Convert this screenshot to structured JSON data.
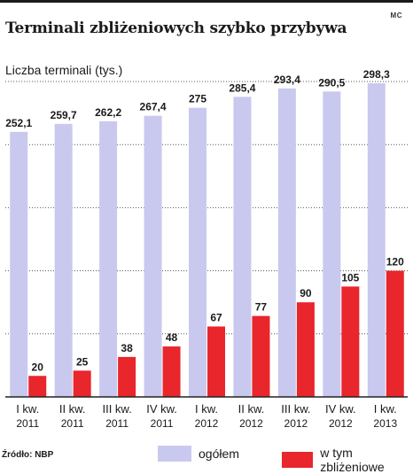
{
  "header": {
    "title": "Terminali zbliżeniowych szybko przybywa",
    "credit": "MC",
    "y_axis_label": "Liczba terminali (tys.)"
  },
  "footer": {
    "source": "Źródło: NBP"
  },
  "colors": {
    "total": "#c9c9ef",
    "contactless": "#e8262b",
    "grid": "#555555",
    "text": "#1a1a1a"
  },
  "chart_data": {
    "type": "bar",
    "title": "Terminali zbliżeniowych szybko przybywa",
    "ylabel": "Liczba terminali (tys.)",
    "xlabel": "",
    "ylim": [
      0,
      300
    ],
    "grid": true,
    "legend": "bottom",
    "categories": [
      [
        "I kw.",
        "2011"
      ],
      [
        "II kw.",
        "2011"
      ],
      [
        "III kw.",
        "2011"
      ],
      [
        "IV kw.",
        "2011"
      ],
      [
        "I kw.",
        "2012"
      ],
      [
        "II kw.",
        "2012"
      ],
      [
        "III kw.",
        "2012"
      ],
      [
        "IV kw.",
        "2012"
      ],
      [
        "I kw.",
        "2013"
      ]
    ],
    "series": [
      {
        "name": "ogółem",
        "values": [
          252.1,
          259.7,
          262.2,
          267.4,
          275,
          285.4,
          293.4,
          290.5,
          298.3
        ],
        "labels": [
          "252,1",
          "259,7",
          "262,2",
          "267,4",
          "275",
          "285,4",
          "293,4",
          "290,5",
          "298,3"
        ]
      },
      {
        "name": "w tym zbliżeniowe",
        "values": [
          20,
          25,
          38,
          48,
          67,
          77,
          90,
          105,
          120
        ],
        "labels": [
          "20",
          "25",
          "38",
          "48",
          "67",
          "77",
          "90",
          "105",
          "120"
        ]
      }
    ]
  }
}
